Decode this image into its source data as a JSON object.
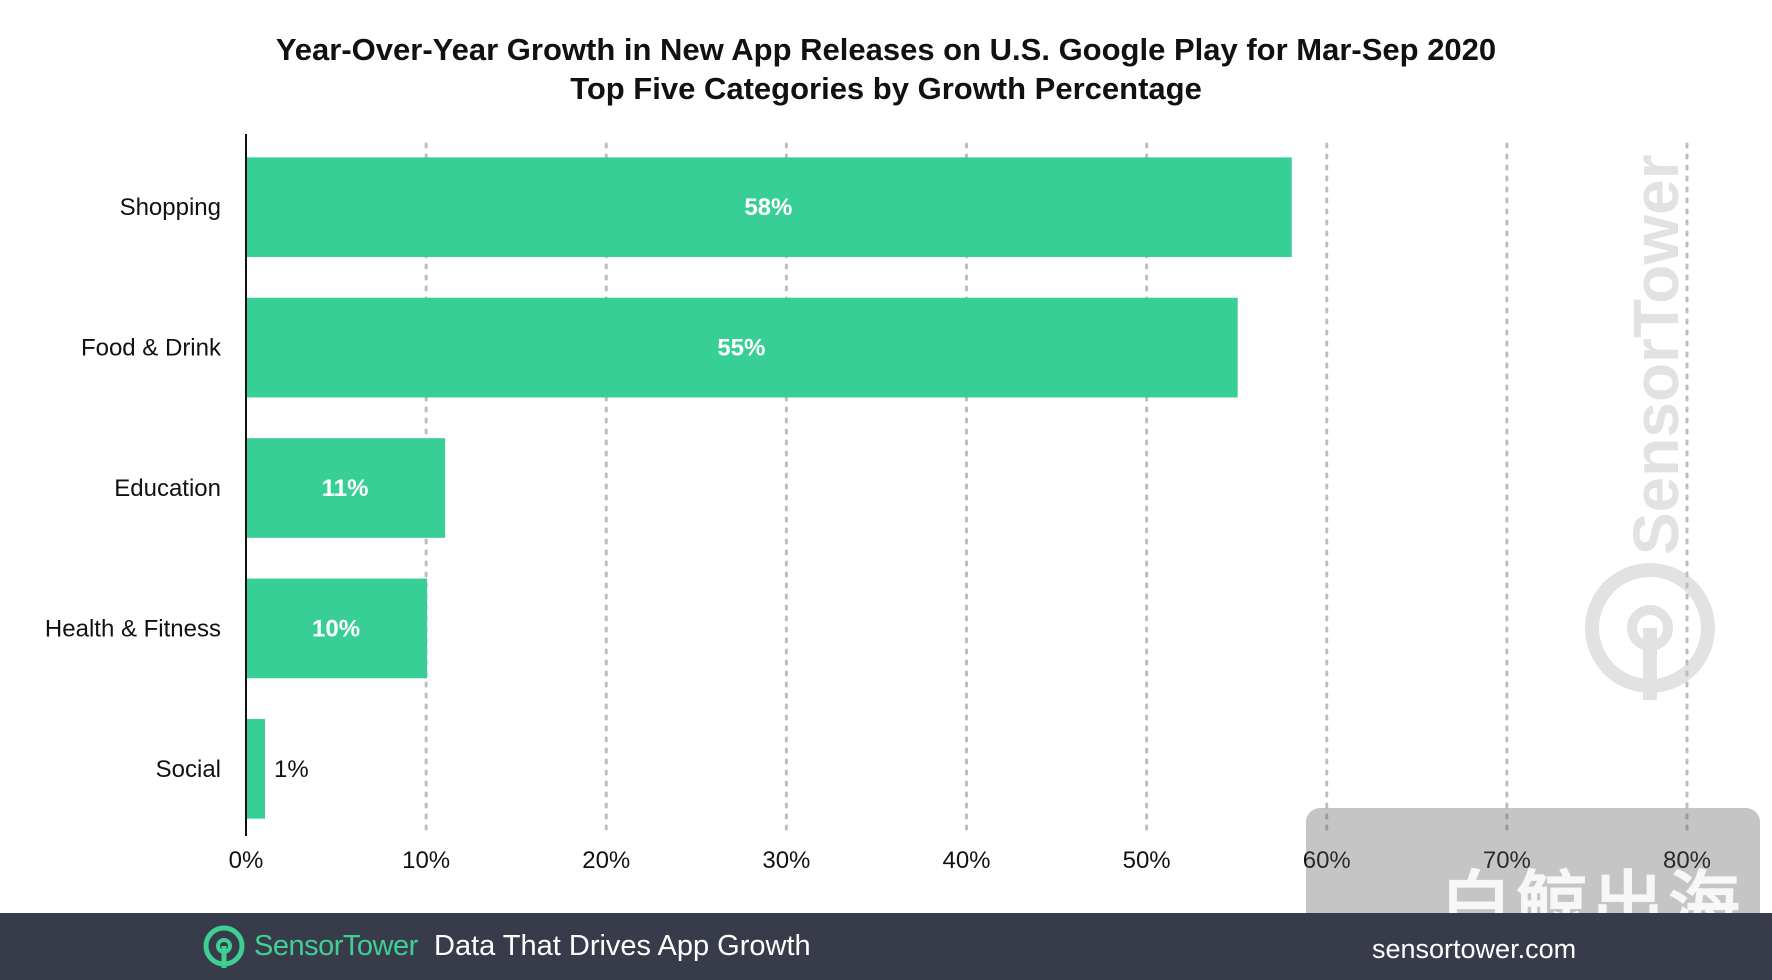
{
  "chart_data": {
    "type": "bar",
    "orientation": "horizontal",
    "title": "Year-Over-Year Growth in New App Releases on U.S. Google Play for Mar-Sep 2020",
    "subtitle": "Top Five Categories by Growth Percentage",
    "categories": [
      "Shopping",
      "Food & Drink",
      "Education",
      "Health & Fitness",
      "Social"
    ],
    "values": [
      58,
      55,
      11,
      10,
      1
    ],
    "value_labels": [
      "58%",
      "55%",
      "11%",
      "10%",
      "1%"
    ],
    "xlim": [
      0,
      80
    ],
    "xticks": [
      0,
      10,
      20,
      30,
      40,
      50,
      60,
      70,
      80
    ],
    "xtick_labels": [
      "0%",
      "10%",
      "20%",
      "30%",
      "40%",
      "50%",
      "60%",
      "70%",
      "80%"
    ],
    "grid": "vertical-dotted",
    "bar_color": "#38cf96"
  },
  "watermark": {
    "text": "SensorTower"
  },
  "footer": {
    "brand": "SensorTower",
    "tagline": "Data That Drives App Growth",
    "site": "sensortower.com"
  },
  "overlay": {
    "text": "白鲸出海"
  },
  "colors": {
    "bar": "#38cf96",
    "footer_bg": "#383c4a",
    "brand": "#3fcf95"
  }
}
